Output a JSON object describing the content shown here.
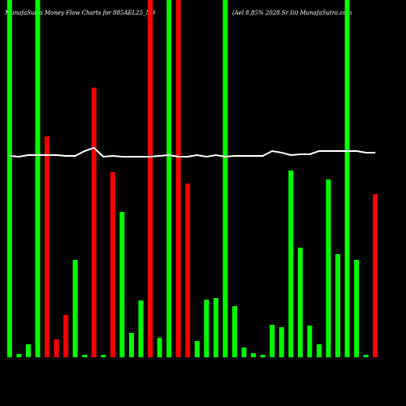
{
  "chart_data": {
    "type": "bar",
    "title": "MunafaSutra  Money Flow  Charts for 885AEL25_NB",
    "subtitle": "(Ael 8.85% 2028  Sr Iii) MunafaSutra.com",
    "ylim": [
      0,
      440
    ],
    "series": [
      {
        "name": "Money Flow",
        "colors": [
          "#00ff00",
          "#00ff00",
          "#00ff00",
          "#00ff00",
          "#ff0000",
          "#ff0000",
          "#ff0000",
          "#00ff00",
          "#00ff00",
          "#ff0000",
          "#00ff00",
          "#ff0000",
          "#00ff00",
          "#00ff00",
          "#00ff00",
          "#ff0000",
          "#00ff00",
          "#00ff00",
          "#ff0000",
          "#ff0000",
          "#00ff00",
          "#00ff00",
          "#00ff00",
          "#00ff00",
          "#00ff00",
          "#00ff00",
          "#00ff00",
          "#00ff00",
          "#00ff00",
          "#00ff00",
          "#00ff00",
          "#00ff00",
          "#00ff00",
          "#00ff00",
          "#00ff00",
          "#00ff00",
          "#00ff00",
          "#00ff00",
          "#00ff00",
          "#ff0000"
        ],
        "values": [
          440,
          4,
          16,
          440,
          272,
          22,
          52,
          120,
          3,
          332,
          3,
          228,
          179,
          30,
          70,
          440,
          24,
          440,
          440,
          214,
          20,
          71,
          73,
          440,
          63,
          12,
          5,
          3,
          40,
          37,
          230,
          135,
          39,
          16,
          219,
          127,
          440,
          120,
          3,
          201
        ]
      },
      {
        "name": "Price",
        "color": "#ffffff",
        "values": [
          248,
          247,
          249,
          249,
          249,
          249,
          248,
          248,
          254,
          258,
          247,
          248,
          247,
          247,
          247,
          247,
          248,
          249,
          247,
          247,
          249,
          247,
          249,
          247,
          248,
          248,
          248,
          248,
          254,
          252,
          249,
          250,
          250,
          254,
          254,
          254,
          254,
          254,
          252,
          252
        ]
      }
    ]
  }
}
